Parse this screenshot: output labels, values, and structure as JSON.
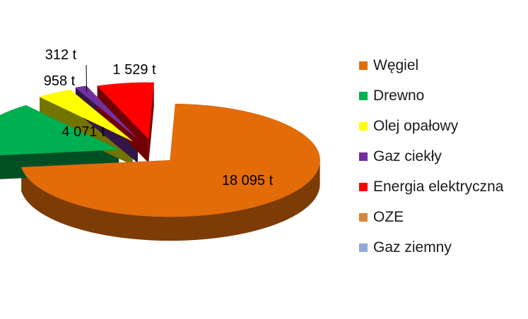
{
  "chart_data": {
    "type": "pie",
    "style": "3d-exploded",
    "title": "",
    "unit": "t",
    "legend_position": "right",
    "categories": [
      "Węgiel",
      "Drewno",
      "Olej opałowy",
      "Gaz ciekły",
      "Energia elektryczna",
      "OZE",
      "Gaz ziemny"
    ],
    "values": [
      18095,
      4071,
      958,
      312,
      1529,
      0,
      0
    ],
    "data_labels": [
      "18 095 t",
      "4 071 t",
      "958 t",
      "312 t",
      "1 529 t",
      "",
      ""
    ],
    "colors": [
      "#E36C09",
      "#00B050",
      "#FFFF00",
      "#7030A0",
      "#FF0000",
      "#D9853B",
      "#8EA9DB"
    ]
  }
}
